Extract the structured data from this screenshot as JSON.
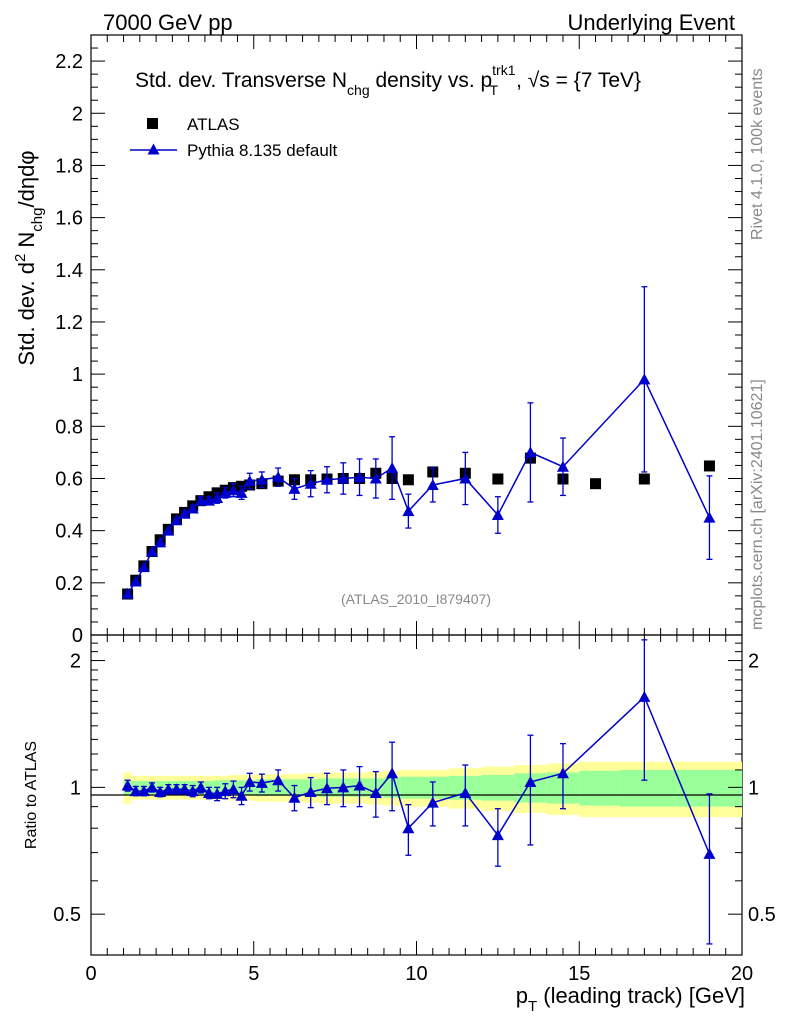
{
  "header": {
    "left": "7000 GeV pp",
    "right": "Underlying Event"
  },
  "side": {
    "rivet": "Rivet 4.1.0,  100k events",
    "mcplots": "mcplots.cern.ch [arXiv:2401.10621]"
  },
  "chart_data": {
    "type": "scatter",
    "title_parts": {
      "a": "Std. dev. Transverse N",
      "a_sub": "chg",
      "b": " density vs. p",
      "b_sup": "trk1",
      "b_sub": "T",
      "c": ", √s = {7 TeV}"
    },
    "ylabel_top_parts": {
      "a": "Std. dev. d",
      "a_sup": "2",
      "b": " N",
      "b_sub": "chg",
      "c": "/dηdφ"
    },
    "ylabel_bottom": "Ratio to ATLAS",
    "xlabel_parts": {
      "a": "p",
      "a_sub": "T",
      "b": " (leading track) [GeV]"
    },
    "watermark": "(ATLAS_2010_I879407)",
    "xlim": [
      0,
      20
    ],
    "ylim_top": [
      0,
      2.3
    ],
    "ylim_ratio": [
      0.4,
      2.3
    ],
    "x_ticks": [
      "0",
      "5",
      "10",
      "15",
      "20"
    ],
    "y_ticks_top": [
      "0",
      "0.2",
      "0.4",
      "0.6",
      "0.8",
      "1",
      "1.2",
      "1.4",
      "1.6",
      "1.8",
      "2",
      "2.2"
    ],
    "y_ticks_ratio": [
      "0.5",
      "1",
      "2"
    ],
    "legend": {
      "atlas": "ATLAS",
      "pythia": "Pythia 8.135 default",
      "position": "top-left"
    },
    "atlas": {
      "name": "ATLAS",
      "x": [
        1.125,
        1.375,
        1.625,
        1.875,
        2.125,
        2.375,
        2.625,
        2.875,
        3.125,
        3.375,
        3.625,
        3.875,
        4.125,
        4.375,
        4.625,
        4.875,
        5.25,
        5.75,
        6.25,
        6.75,
        7.25,
        7.75,
        8.25,
        8.75,
        9.25,
        9.75,
        10.5,
        11.5,
        12.5,
        13.5,
        14.5,
        15.5,
        17,
        19
      ],
      "y": [
        0.157,
        0.21,
        0.265,
        0.32,
        0.365,
        0.405,
        0.445,
        0.47,
        0.495,
        0.515,
        0.53,
        0.545,
        0.555,
        0.565,
        0.57,
        0.575,
        0.58,
        0.59,
        0.595,
        0.595,
        0.598,
        0.6,
        0.6,
        0.62,
        0.6,
        0.595,
        0.625,
        0.62,
        0.598,
        0.678,
        0.598,
        0.58,
        0.598,
        0.648
      ],
      "band_inner": [
        0.04,
        0.035,
        0.035,
        0.035,
        0.035,
        0.035,
        0.035,
        0.035,
        0.035,
        0.035,
        0.035,
        0.04,
        0.04,
        0.04,
        0.04,
        0.04,
        0.045,
        0.045,
        0.045,
        0.045,
        0.05,
        0.05,
        0.05,
        0.05,
        0.055,
        0.06,
        0.06,
        0.065,
        0.07,
        0.08,
        0.085,
        0.095,
        0.1,
        0.1
      ],
      "band_outer": [
        0.085,
        0.065,
        0.065,
        0.065,
        0.065,
        0.065,
        0.065,
        0.065,
        0.065,
        0.065,
        0.065,
        0.065,
        0.065,
        0.07,
        0.07,
        0.07,
        0.075,
        0.075,
        0.075,
        0.08,
        0.085,
        0.085,
        0.085,
        0.09,
        0.095,
        0.1,
        0.1,
        0.11,
        0.12,
        0.13,
        0.14,
        0.15,
        0.15,
        0.15
      ]
    },
    "pythia": {
      "name": "Pythia 8.135 default",
      "x": [
        1.125,
        1.375,
        1.625,
        1.875,
        2.125,
        2.375,
        2.625,
        2.875,
        3.125,
        3.375,
        3.625,
        3.875,
        4.125,
        4.375,
        4.625,
        4.875,
        5.25,
        5.75,
        6.25,
        6.75,
        7.25,
        7.75,
        8.25,
        8.75,
        9.25,
        9.75,
        10.5,
        11.5,
        12.5,
        13.5,
        14.5,
        17,
        19
      ],
      "y": [
        0.158,
        0.205,
        0.26,
        0.32,
        0.355,
        0.4,
        0.44,
        0.465,
        0.485,
        0.515,
        0.515,
        0.525,
        0.545,
        0.555,
        0.545,
        0.59,
        0.595,
        0.605,
        0.56,
        0.58,
        0.595,
        0.6,
        0.605,
        0.6,
        0.64,
        0.475,
        0.575,
        0.6,
        0.46,
        0.7,
        0.645,
        0.98,
        0.45
      ],
      "yerr": [
        0.005,
        0.005,
        0.005,
        0.006,
        0.006,
        0.007,
        0.008,
        0.01,
        0.012,
        0.015,
        0.015,
        0.02,
        0.02,
        0.025,
        0.025,
        0.03,
        0.03,
        0.035,
        0.04,
        0.05,
        0.05,
        0.06,
        0.07,
        0.075,
        0.12,
        0.065,
        0.065,
        0.1,
        0.07,
        0.19,
        0.11,
        0.355,
        0.16
      ],
      "ratio": [
        1.01,
        0.98,
        0.98,
        1.0,
        0.975,
        0.99,
        0.99,
        0.99,
        0.98,
        1.0,
        0.97,
        0.965,
        0.98,
        0.99,
        0.955,
        1.03,
        1.025,
        1.04,
        0.945,
        0.975,
        0.995,
        1.0,
        1.01,
        0.97,
        1.08,
        0.8,
        0.92,
        0.97,
        0.77,
        1.03,
        1.08,
        1.64,
        0.695
      ],
      "ratio_err": [
        0.03,
        0.025,
        0.025,
        0.025,
        0.025,
        0.025,
        0.025,
        0.025,
        0.03,
        0.03,
        0.03,
        0.035,
        0.04,
        0.045,
        0.045,
        0.05,
        0.05,
        0.06,
        0.065,
        0.08,
        0.085,
        0.1,
        0.11,
        0.12,
        0.2,
        0.11,
        0.11,
        0.16,
        0.12,
        0.3,
        0.19,
        0.6,
        0.27
      ]
    }
  }
}
